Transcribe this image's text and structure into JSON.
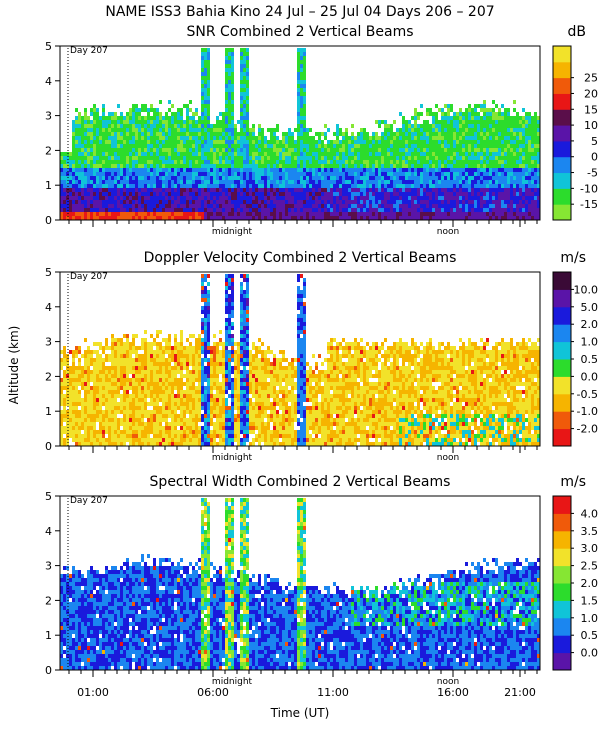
{
  "figure": {
    "title": "NAME ISS3 Bahia Kino  24 Jul – 25 Jul 04 Days 206 – 207",
    "ylabel": "Altitude (km)",
    "xlabel": "Time (UT)",
    "day_marker_label": "Day 207",
    "markers": [
      "midnight",
      "noon"
    ]
  },
  "chart_data": [
    {
      "type": "heatmap",
      "title": "SNR Combined 2 Vertical Beams",
      "unit": "dB",
      "x_tick_labels": [
        "01:00",
        "06:00",
        "11:00",
        "16:00",
        "21:00"
      ],
      "y_tick_labels": [
        "0",
        "1",
        "2",
        "3",
        "4",
        "5"
      ],
      "ylim": [
        0,
        5
      ],
      "colorbar": {
        "labels": [
          "-15",
          "-10",
          "-5",
          "0",
          "5",
          "10",
          "15",
          "20",
          "25"
        ],
        "colors": [
          "#86e633",
          "#2cdc2c",
          "#10c4d8",
          "#1b86f0",
          "#1a1adc",
          "#5a14a8",
          "#5a0e4a",
          "#e81616",
          "#f05a0a",
          "#f6b400",
          "#f2e22a"
        ]
      }
    },
    {
      "type": "heatmap",
      "title": "Doppler Velocity Combined 2 Vertical Beams",
      "unit": "m/s",
      "x_tick_labels": [
        "01:00",
        "06:00",
        "11:00",
        "16:00",
        "21:00"
      ],
      "y_tick_labels": [
        "0",
        "1",
        "2",
        "3",
        "4",
        "5"
      ],
      "ylim": [
        0,
        5
      ],
      "colorbar": {
        "labels": [
          "-2.0",
          "-1.0",
          "-0.5",
          "0.0",
          "0.5",
          "1.0",
          "2.0",
          "5.0",
          "10.0"
        ],
        "colors": [
          "#e81616",
          "#f05a0a",
          "#f6b400",
          "#f2e22a",
          "#2cdc2c",
          "#10c4d8",
          "#1b86f0",
          "#1a1adc",
          "#5a14a8",
          "#3a0a36"
        ]
      }
    },
    {
      "type": "heatmap",
      "title": "Spectral Width Combined 2 Vertical Beams",
      "unit": "m/s",
      "x_tick_labels": [
        "01:00",
        "06:00",
        "11:00",
        "16:00",
        "21:00"
      ],
      "y_tick_labels": [
        "0",
        "1",
        "2",
        "3",
        "4",
        "5"
      ],
      "ylim": [
        0,
        5
      ],
      "colorbar": {
        "labels": [
          "0.0",
          "0.5",
          "1.0",
          "1.5",
          "2.0",
          "2.5",
          "3.0",
          "3.5",
          "4.0"
        ],
        "colors": [
          "#5a14a8",
          "#1a1adc",
          "#1b86f0",
          "#10c4d8",
          "#2cdc2c",
          "#86e633",
          "#f2e22a",
          "#f6b400",
          "#f05a0a",
          "#e81616"
        ]
      }
    }
  ]
}
